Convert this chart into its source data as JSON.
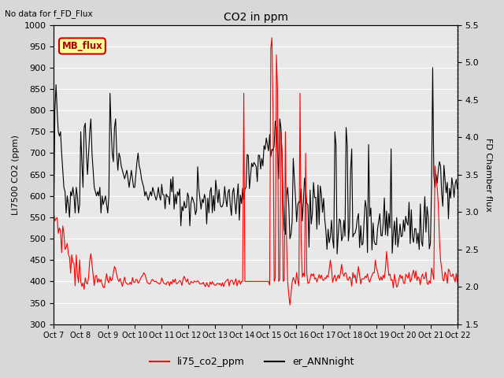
{
  "title": "CO2 in ppm",
  "top_left_text": "No data for f_FD_Flux",
  "ylabel_left": "LI7500 CO2 (ppm)",
  "ylabel_right": "FD Chamber flux",
  "ylim_left": [
    300,
    1000
  ],
  "ylim_right": [
    1.5,
    5.5
  ],
  "yticks_left": [
    300,
    350,
    400,
    450,
    500,
    550,
    600,
    650,
    700,
    750,
    800,
    850,
    900,
    950,
    1000
  ],
  "yticks_right": [
    1.5,
    2.0,
    2.5,
    3.0,
    3.5,
    4.0,
    4.5,
    5.0,
    5.5
  ],
  "xtick_labels": [
    "Oct 7",
    "Oct 8",
    "Oct 9",
    "Oct 10",
    "Oct 11",
    "Oct 12",
    "Oct 13",
    "Oct 14",
    "Oct 15",
    "Oct 16",
    "Oct 17",
    "Oct 18",
    "Oct 19",
    "Oct 20",
    "Oct 21",
    "Oct 22"
  ],
  "background_color": "#d8d8d8",
  "plot_bg_color": "#e8e8e8",
  "grid_color": "#ffffff",
  "line_red_color": "#ff0000",
  "line_black_color": "#000000",
  "legend_label_red": "li75_co2_ppm",
  "legend_label_black": "er_ANNnight",
  "box_label": "MB_flux",
  "box_facecolor": "#ffff99",
  "box_edgecolor": "#cc0000"
}
